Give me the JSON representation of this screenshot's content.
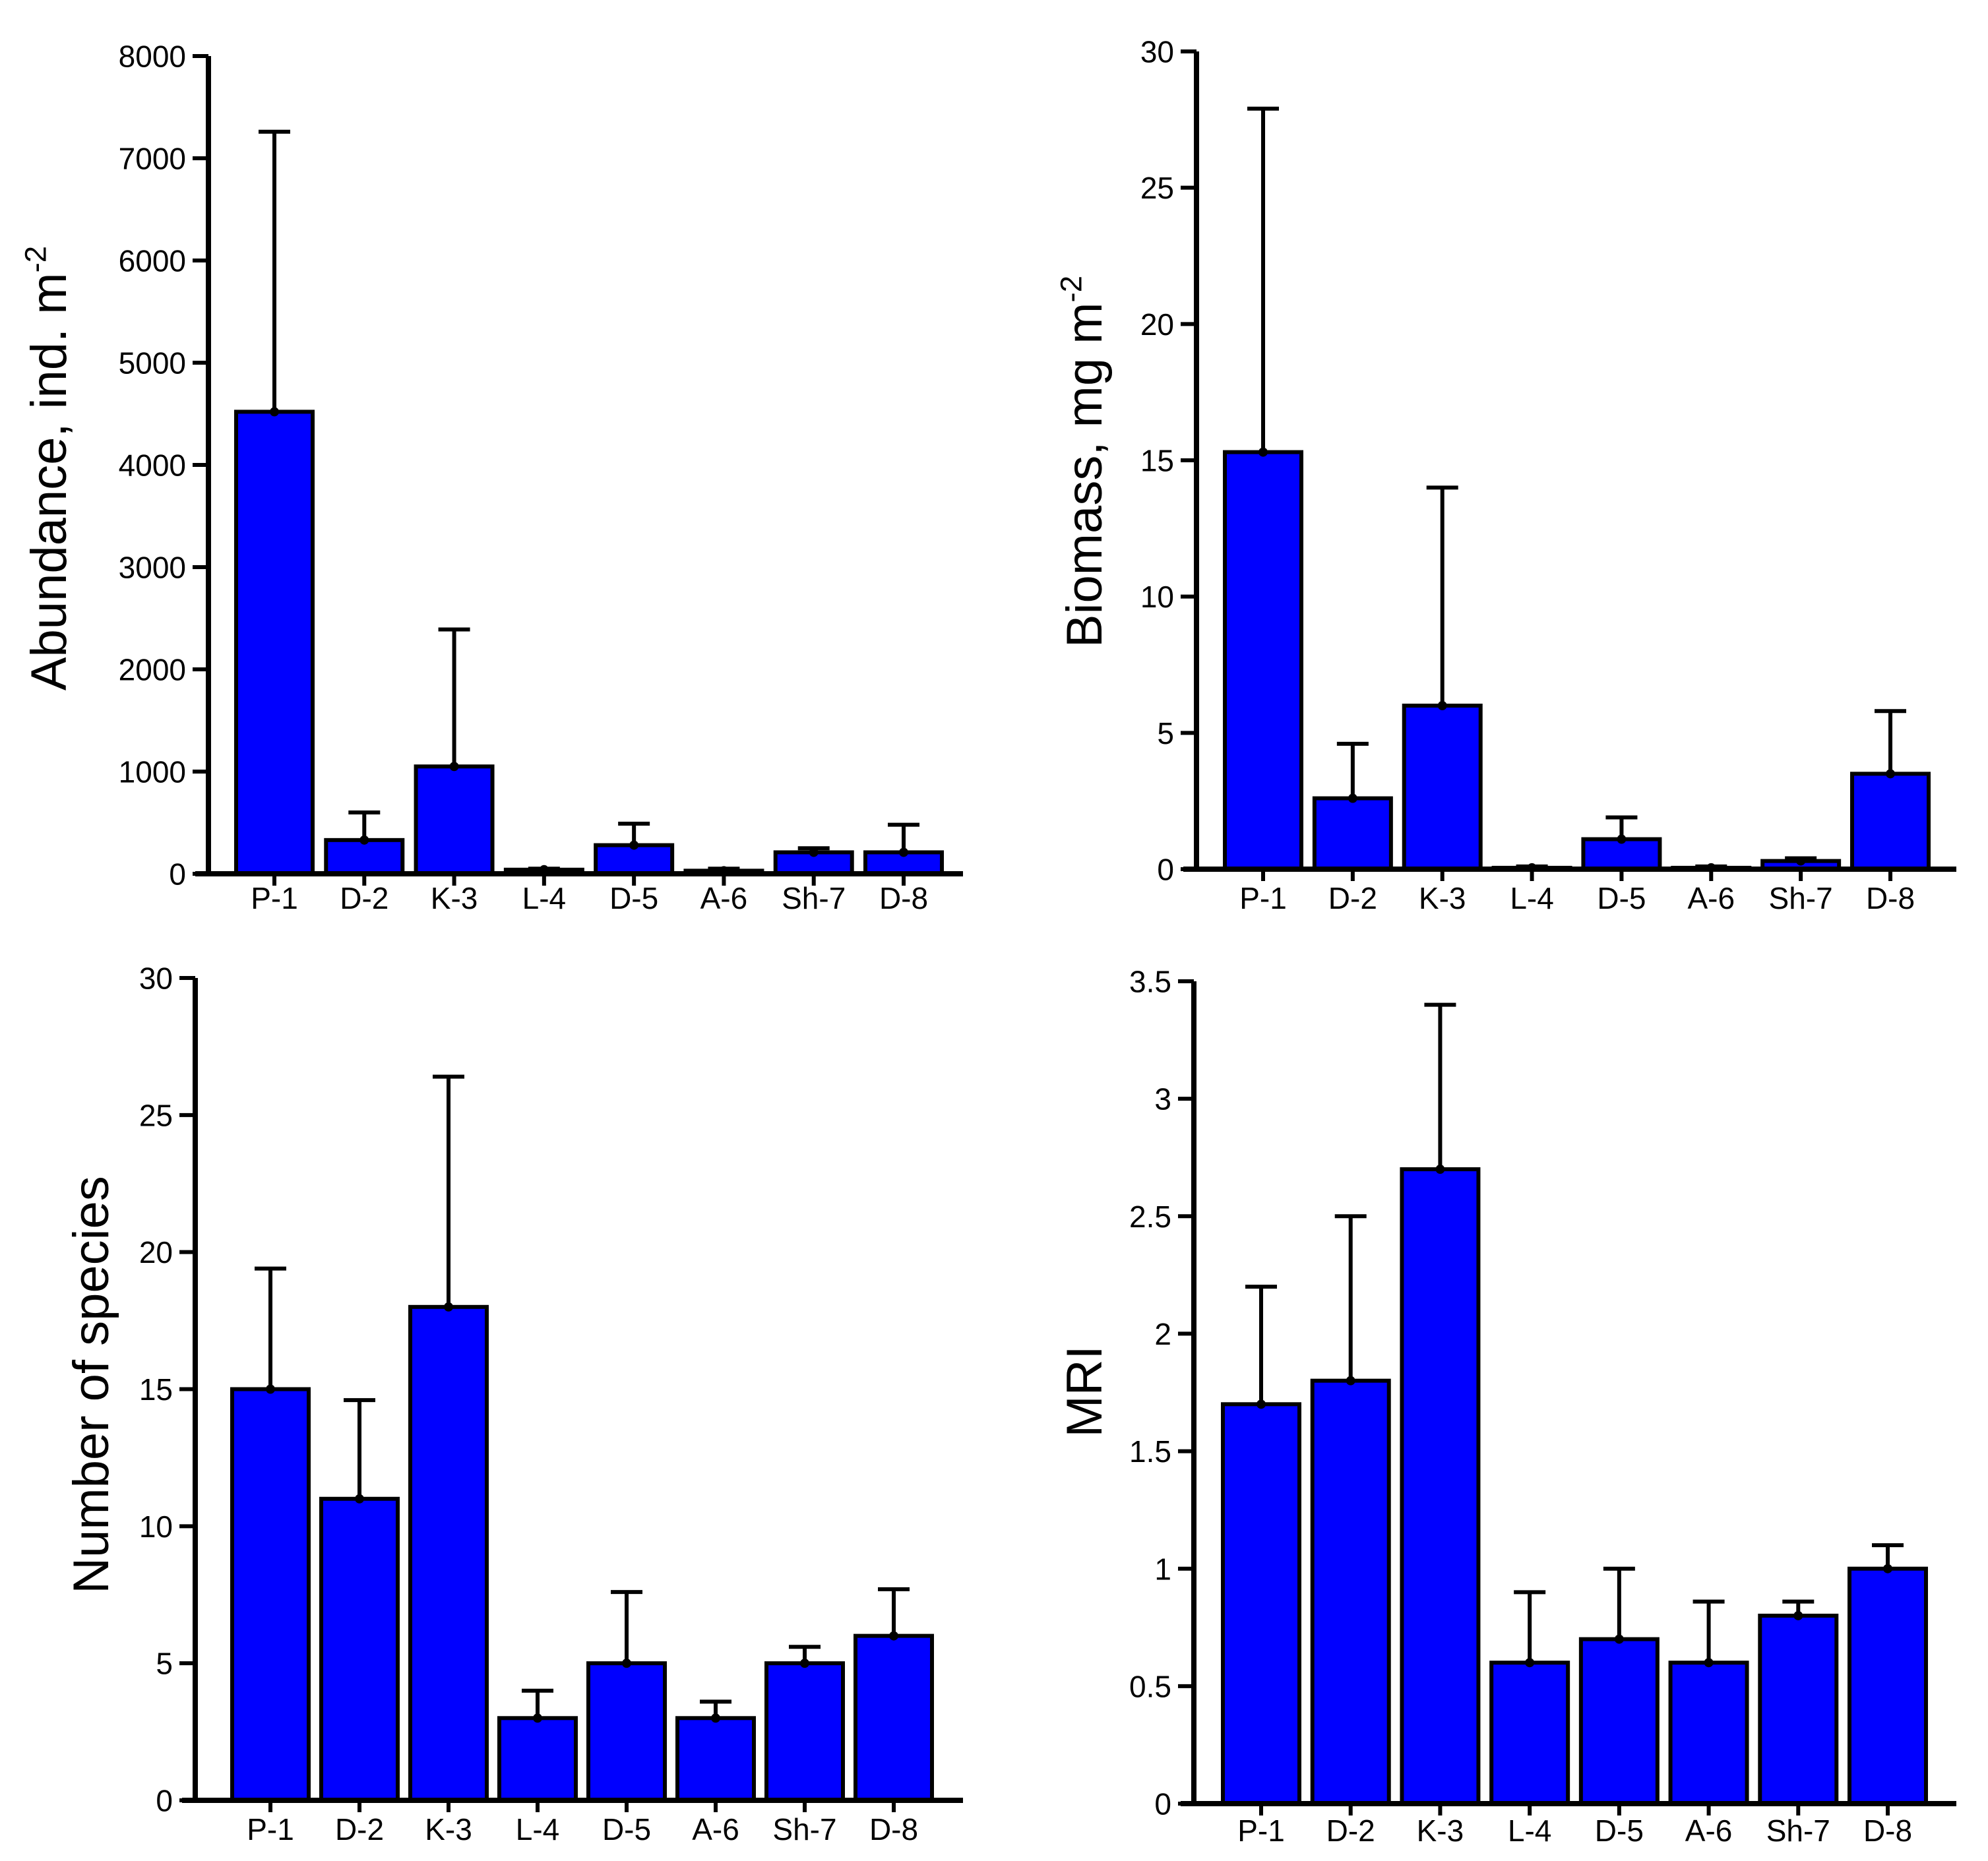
{
  "chart_data": [
    {
      "type": "bar",
      "ylabel": "Abundance, ind. m",
      "ylabel_sup": "-2",
      "categories": [
        "P-1",
        "D-2",
        "K-3",
        "L-4",
        "D-5",
        "A-6",
        "Sh-7",
        "D-8"
      ],
      "values": [
        4520,
        330,
        1050,
        40,
        280,
        30,
        210,
        210
      ],
      "errors": [
        2740,
        270,
        1340,
        10,
        210,
        20,
        40,
        270
      ],
      "ylim": [
        0,
        8000
      ],
      "yticks": [
        "0",
        "1000",
        "2000",
        "3000",
        "4000",
        "5000",
        "6000",
        "7000",
        "8000"
      ],
      "bar_color": "#0000ff",
      "grid": false
    },
    {
      "type": "bar",
      "ylabel": "Biomass, mg m",
      "ylabel_sup": "-2",
      "categories": [
        "P-1",
        "D-2",
        "K-3",
        "L-4",
        "D-5",
        "A-6",
        "Sh-7",
        "D-8"
      ],
      "values": [
        15.3,
        2.6,
        6.0,
        0.05,
        1.1,
        0.05,
        0.3,
        3.5
      ],
      "errors": [
        12.6,
        2.0,
        8.0,
        0.05,
        0.8,
        0.05,
        0.1,
        2.3
      ],
      "ylim": [
        0,
        30
      ],
      "yticks": [
        "0",
        "5",
        "10",
        "15",
        "20",
        "25",
        "30"
      ],
      "bar_color": "#0000ff",
      "grid": false
    },
    {
      "type": "bar",
      "ylabel": "Number of species",
      "ylabel_sup": "",
      "categories": [
        "P-1",
        "D-2",
        "K-3",
        "L-4",
        "D-5",
        "A-6",
        "Sh-7",
        "D-8"
      ],
      "values": [
        15,
        11,
        18,
        3,
        5,
        3,
        5,
        6
      ],
      "errors": [
        4.4,
        3.6,
        8.4,
        1.0,
        2.6,
        0.6,
        0.6,
        1.7
      ],
      "ylim": [
        0,
        30
      ],
      "yticks": [
        "0",
        "5",
        "10",
        "15",
        "20",
        "25",
        "30"
      ],
      "bar_color": "#0000ff",
      "grid": false
    },
    {
      "type": "bar",
      "ylabel": "MRI",
      "ylabel_sup": "",
      "categories": [
        "P-1",
        "D-2",
        "K-3",
        "L-4",
        "D-5",
        "A-6",
        "Sh-7",
        "D-8"
      ],
      "values": [
        1.7,
        1.8,
        2.7,
        0.6,
        0.7,
        0.6,
        0.8,
        1.0
      ],
      "errors": [
        0.5,
        0.7,
        0.7,
        0.3,
        0.3,
        0.26,
        0.06,
        0.1
      ],
      "ylim": [
        0,
        3.5
      ],
      "yticks": [
        "0",
        "0.5",
        "1",
        "1.5",
        "2",
        "2.5",
        "3",
        "3.5"
      ],
      "bar_color": "#0000ff",
      "grid": false
    }
  ]
}
